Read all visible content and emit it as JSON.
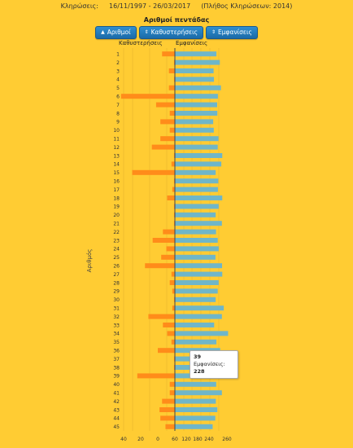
{
  "header": {
    "draws_label": "Κληρώσεις:",
    "date_range": "16/11/1997 - 26/03/2017",
    "draws_count": "(Πλήθος Κληρώσεων: 2014)"
  },
  "buttons": [
    {
      "label": "Αριθμοί",
      "icon": "sort-up-arrow"
    },
    {
      "label": "Καθυστερήσεις",
      "icon": "sort-both-arrow"
    },
    {
      "label": "Εμφανίσεις",
      "icon": "sort-both-arrow"
    }
  ],
  "tooltip": {
    "number": "39",
    "label": "Εμφανίσεις:",
    "value": "228"
  },
  "colors": {
    "background": "#ffcc33",
    "delays": "#ff8c1a",
    "appearances": "#6fb6c8",
    "zero_line": "#444444"
  },
  "chart_data": {
    "type": "bar",
    "title": "Αριθμοί πεντάδας",
    "ylabel": "Αριθμός",
    "left_header": "Καθυστερήσεις",
    "right_header": "Εμφανίσεις",
    "categories": [
      "1",
      "2",
      "3",
      "4",
      "5",
      "6",
      "7",
      "8",
      "9",
      "10",
      "11",
      "12",
      "13",
      "14",
      "15",
      "16",
      "17",
      "18",
      "19",
      "20",
      "21",
      "22",
      "23",
      "24",
      "25",
      "26",
      "27",
      "28",
      "29",
      "30",
      "31",
      "32",
      "33",
      "34",
      "35",
      "36",
      "37",
      "38",
      "39",
      "40",
      "41",
      "42",
      "43",
      "44",
      "45"
    ],
    "xlim": [
      -60,
      280
    ],
    "tick_labels": [
      "40",
      "20",
      "0",
      "60",
      "120",
      "180",
      "240",
      "260"
    ],
    "series": [
      {
        "name": "Καθυστερήσεις",
        "side": "left",
        "values": [
          15,
          1,
          7,
          1,
          7,
          63,
          22,
          6,
          17,
          6,
          17,
          27,
          1,
          4,
          50,
          1,
          3,
          9,
          1,
          1,
          1,
          14,
          26,
          10,
          16,
          35,
          4,
          6,
          3,
          1,
          3,
          31,
          14,
          9,
          4,
          20,
          1,
          1,
          44,
          6,
          6,
          15,
          18,
          17,
          11
        ]
      },
      {
        "name": "Εμφανίσεις",
        "side": "right",
        "values": [
          220,
          238,
          205,
          207,
          244,
          228,
          224,
          225,
          203,
          206,
          231,
          227,
          251,
          246,
          216,
          230,
          228,
          251,
          232,
          216,
          249,
          218,
          227,
          232,
          215,
          250,
          251,
          232,
          227,
          216,
          259,
          249,
          208,
          282,
          220,
          240,
          194,
          195,
          228,
          219,
          249,
          217,
          225,
          214,
          200
        ]
      }
    ]
  }
}
